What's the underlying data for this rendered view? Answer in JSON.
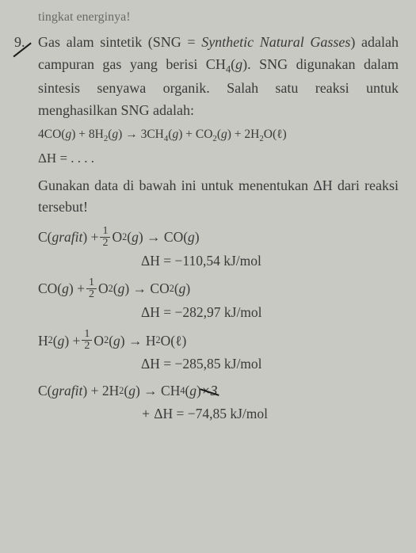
{
  "partial_prev": "tingkat energinya!",
  "question_number": "9.",
  "paragraph": {
    "p1a": "Gas alam sintetik (SNG = ",
    "p1b": "Synthetic Natural Gasses",
    "p1c": ") adalah campuran gas yang berisi CH",
    "p1d": "(",
    "p1e": "g",
    "p1f": "). SNG digunakan dalam sintesis senyawa organik. Salah satu reaksi untuk menghasilkan SNG adalah:"
  },
  "main_eq": {
    "a": "4CO(",
    "b": "g",
    "c": ") + 8H",
    "d": "(",
    "e": "g",
    "f": ") → 3CH",
    "g": "(",
    "h": "g",
    "i": ") + CO",
    "j": "(",
    "k": "g",
    "l": ") + 2H",
    "m": "O(ℓ)"
  },
  "dh_unknown": "ΔH = . . . .",
  "instruction": "Gunakan data di bawah ini untuk menentukan ΔH dari reaksi tersebut!",
  "r1": {
    "a": "C(",
    "b": "grafit",
    "c": ") + ",
    "d": "O",
    "e": "(",
    "f": "g",
    "g": ") → CO(",
    "h": "g",
    "i": ")",
    "dh": "ΔH = −110,54 kJ/mol"
  },
  "r2": {
    "a": "CO(",
    "b": "g",
    "c": ") + ",
    "d": "O",
    "e": "(",
    "f": "g",
    "g": ") → CO",
    "h": "(",
    "i": "g",
    "j": ")",
    "dh": "ΔH = −282,97 kJ/mol"
  },
  "r3": {
    "a": "H",
    "b": "(",
    "c": "g",
    "d": ") + ",
    "e": "O",
    "f": "(",
    "g": "g",
    "h": ") → H",
    "i": "O(ℓ)",
    "dh": "ΔH = −285,85 kJ/mol"
  },
  "r4": {
    "a": "C(",
    "b": "grafit",
    "c": ") + 2H",
    "d": "(",
    "e": "g",
    "f": ") → CH",
    "g": "(",
    "h": "g",
    "i": ") ",
    "note": "×3",
    "dh_pre": "+ ",
    "dh": "ΔH = −74,85 kJ/mol"
  },
  "frac": {
    "num": "1",
    "den": "2"
  },
  "sub2": "2",
  "sub4": "4"
}
